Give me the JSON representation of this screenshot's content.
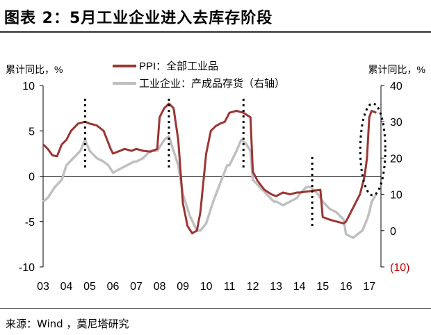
{
  "title": "图表 2：5月工业企业进入去库存阶段",
  "source": "来源：Wind ，莫尼塔研究",
  "colors": {
    "ppi": "#9b3533",
    "inventory": "#c0c0c0",
    "neg_label": "#c00000"
  },
  "chart_data": {
    "type": "line",
    "left_unit": "累计同比，%",
    "right_unit": "累计同比，%",
    "left_ylim": [
      -10,
      10
    ],
    "right_ylim": [
      -10,
      40
    ],
    "left_ticks": [
      "10",
      "5",
      "0",
      "-5",
      "-10"
    ],
    "right_ticks": [
      "40",
      "30",
      "20",
      "10",
      "0",
      "(10)"
    ],
    "x_ticks": [
      "03",
      "04",
      "05",
      "06",
      "07",
      "08",
      "09",
      "10",
      "11",
      "12",
      "13",
      "14",
      "15",
      "16",
      "17"
    ],
    "series": [
      {
        "name": "PPI：全部工业品",
        "axis": "left",
        "x": [
          2003.0,
          2003.2,
          2003.4,
          2003.6,
          2003.8,
          2004.0,
          2004.2,
          2004.5,
          2004.8,
          2005.0,
          2005.3,
          2005.6,
          2005.9,
          2006.0,
          2006.2,
          2006.5,
          2006.8,
          2007.0,
          2007.3,
          2007.6,
          2007.9,
          2008.0,
          2008.2,
          2008.4,
          2008.6,
          2008.8,
          2009.0,
          2009.2,
          2009.4,
          2009.6,
          2009.75,
          2010.0,
          2010.2,
          2010.4,
          2010.6,
          2010.8,
          2011.0,
          2011.3,
          2011.6,
          2011.9,
          2012.0,
          2012.2,
          2012.5,
          2012.8,
          2013.0,
          2013.3,
          2013.6,
          2013.9,
          2014.0,
          2014.3,
          2014.6,
          2014.9,
          2015.0,
          2015.3,
          2015.6,
          2015.9,
          2016.0,
          2016.3,
          2016.6,
          2016.8,
          2016.9,
          2017.0,
          2017.1,
          2017.3
        ],
        "values": [
          3.5,
          3.0,
          2.3,
          2.2,
          3.5,
          4.0,
          5.0,
          5.8,
          6.0,
          5.8,
          5.6,
          5.0,
          3.0,
          2.5,
          2.7,
          3.0,
          2.8,
          3.0,
          2.8,
          2.7,
          3.0,
          6.5,
          7.5,
          8.0,
          7.5,
          4.0,
          -3.0,
          -5.5,
          -6.3,
          -6.0,
          -4.0,
          2.5,
          5.0,
          5.5,
          5.8,
          6.0,
          7.0,
          7.2,
          7.0,
          6.5,
          0.5,
          -0.5,
          -1.5,
          -2.0,
          -2.2,
          -1.8,
          -2.0,
          -1.8,
          -1.8,
          -1.7,
          -1.6,
          -1.5,
          -4.5,
          -4.8,
          -5.0,
          -5.2,
          -5.0,
          -3.5,
          -2.0,
          0.0,
          2.0,
          6.5,
          7.2,
          7.0
        ]
      },
      {
        "name": "工业企业：产成品存货（右轴）",
        "axis": "right",
        "x": [
          2003.0,
          2003.2,
          2003.5,
          2003.8,
          2004.0,
          2004.3,
          2004.6,
          2004.8,
          2005.0,
          2005.3,
          2005.6,
          2005.8,
          2006.0,
          2006.3,
          2006.6,
          2006.9,
          2007.0,
          2007.3,
          2007.6,
          2007.9,
          2008.0,
          2008.2,
          2008.4,
          2008.5,
          2008.6,
          2008.8,
          2009.0,
          2009.3,
          2009.6,
          2009.75,
          2010.0,
          2010.3,
          2010.6,
          2010.9,
          2011.0,
          2011.3,
          2011.5,
          2011.7,
          2011.9,
          2012.0,
          2012.3,
          2012.6,
          2012.9,
          2013.0,
          2013.3,
          2013.6,
          2013.9,
          2014.0,
          2014.3,
          2014.5,
          2014.8,
          2015.0,
          2015.3,
          2015.6,
          2015.9,
          2016.0,
          2016.3,
          2016.5,
          2016.7,
          2016.9,
          2017.0,
          2017.1,
          2017.3
        ],
        "values": [
          8,
          9,
          12,
          14,
          18,
          20,
          22,
          25,
          22,
          20,
          19,
          18,
          16,
          17,
          18,
          19,
          19,
          20,
          22,
          22,
          23,
          25,
          26,
          24,
          22,
          18,
          10,
          4,
          0,
          0,
          2,
          8,
          13,
          18,
          18,
          22,
          25,
          24,
          22,
          14,
          12,
          10,
          8,
          8,
          7,
          8,
          9,
          10,
          12,
          12,
          10,
          8,
          6,
          5,
          3,
          -1,
          -2,
          -1,
          0,
          3,
          5,
          8,
          10
        ]
      }
    ],
    "markers_x": [
      2004.8,
      2008.4,
      2011.6,
      2014.55
    ]
  }
}
